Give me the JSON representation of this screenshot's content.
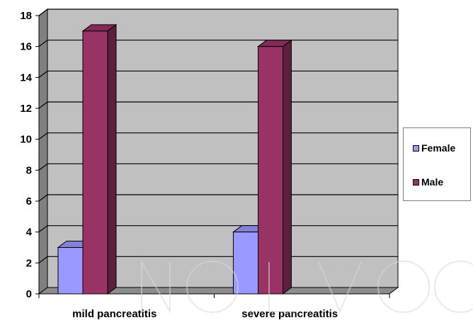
{
  "chart_data": {
    "type": "bar",
    "style": "3d-clustered-column",
    "categories": [
      "mild pancreatitis",
      "severe pancreatitis"
    ],
    "series": [
      {
        "name": "Female",
        "values": [
          3,
          4
        ],
        "color": "#9999FF"
      },
      {
        "name": "Male",
        "values": [
          17,
          16
        ],
        "color": "#993366"
      }
    ],
    "ylim": [
      0,
      18
    ],
    "yticks": [
      "0",
      "2",
      "4",
      "6",
      "8",
      "10",
      "12",
      "14",
      "16",
      "18"
    ],
    "grid": true,
    "legend": "right",
    "wall_color": "#C0C0C0",
    "title": "",
    "xlabel": "",
    "ylabel": ""
  }
}
